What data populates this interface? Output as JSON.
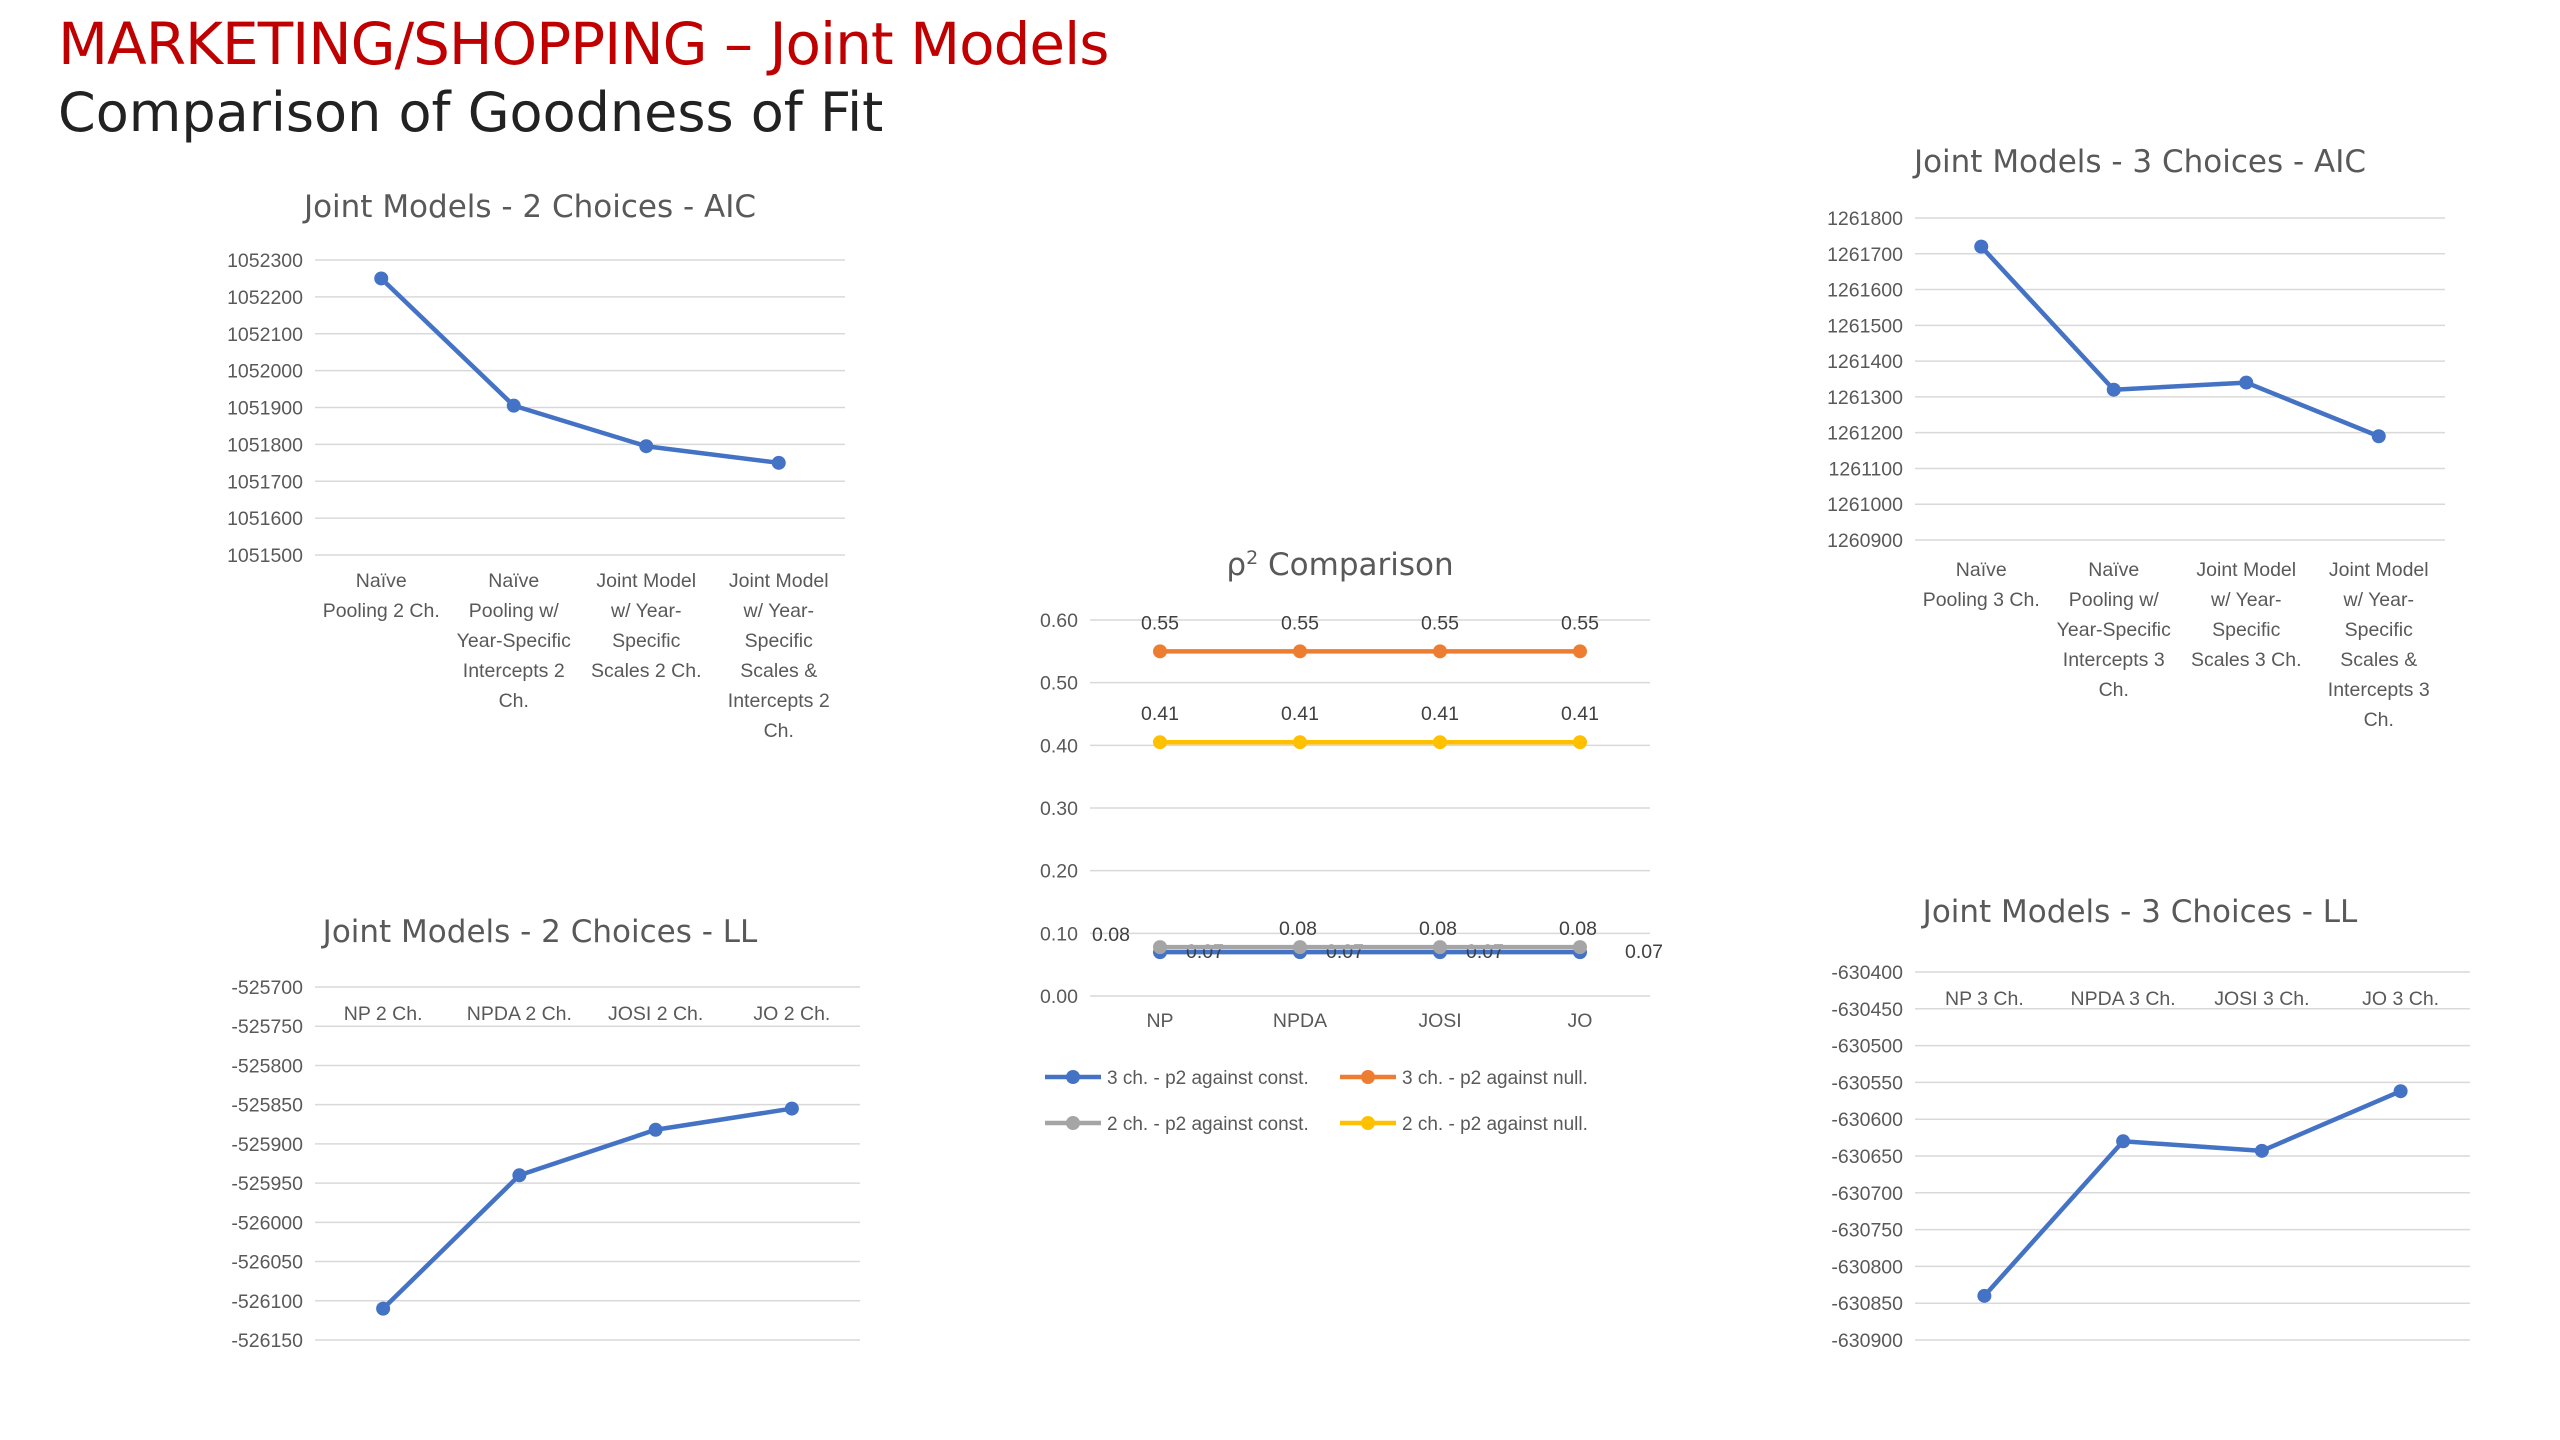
{
  "slide": {
    "title": "MARKETING/SHOPPING – Joint Models",
    "subtitle": "Comparison of Goodness of Fit"
  },
  "colors": {
    "title": "#c00000",
    "series_blue": "#4472c4",
    "series_orange": "#ed7d31",
    "series_gray": "#a5a5a5",
    "series_yellow": "#ffc000",
    "grid": "#d9d9d9",
    "text": "#595959"
  },
  "chart_data": [
    {
      "id": "aic2",
      "type": "line",
      "title": "Joint Models - 2 Choices - AIC",
      "categories": [
        [
          "Naïve",
          "Pooling 2 Ch."
        ],
        [
          "Naïve",
          "Pooling w/",
          "Year-Specific",
          "Intercepts 2",
          "Ch."
        ],
        [
          "Joint Model",
          "w/ Year-",
          "Specific",
          "Scales 2 Ch."
        ],
        [
          "Joint Model",
          "w/ Year-",
          "Specific",
          "Scales &",
          "Intercepts 2",
          "Ch."
        ]
      ],
      "series": [
        {
          "values": [
            1052250,
            1051905,
            1051795,
            1051750
          ],
          "color": "#4472c4"
        }
      ],
      "ylim": [
        1051500,
        1052300
      ],
      "ytick_step": 100,
      "grid": true,
      "xaxis_position": "bottom"
    },
    {
      "id": "aic3",
      "type": "line",
      "title": "Joint Models - 3 Choices - AIC",
      "categories": [
        [
          "Naïve",
          "Pooling 3 Ch."
        ],
        [
          "Naïve",
          "Pooling w/",
          "Year-Specific",
          "Intercepts 3",
          "Ch."
        ],
        [
          "Joint Model",
          "w/ Year-",
          "Specific",
          "Scales 3 Ch."
        ],
        [
          "Joint Model",
          "w/ Year-",
          "Specific",
          "Scales &",
          "Intercepts 3",
          "Ch."
        ]
      ],
      "series": [
        {
          "values": [
            1261720,
            1261320,
            1261340,
            1261190
          ],
          "color": "#4472c4"
        }
      ],
      "ylim": [
        1260900,
        1261800
      ],
      "ytick_step": 100,
      "grid": true,
      "xaxis_position": "bottom"
    },
    {
      "id": "rho",
      "type": "line",
      "title": "ρ",
      "title_superscript": "2",
      "title_suffix": " Comparison",
      "categories": [
        [
          "NP"
        ],
        [
          "NPDA"
        ],
        [
          "JOSI"
        ],
        [
          "JO"
        ]
      ],
      "series": [
        {
          "name": "3 ch. - p2 against const.",
          "values": [
            0.07,
            0.07,
            0.07,
            0.07
          ],
          "color": "#4472c4",
          "labels": [
            "0.07",
            "0.07",
            "0.07",
            "0.07"
          ],
          "label_pos": "below"
        },
        {
          "name": "3 ch. - p2 against null.",
          "values": [
            0.55,
            0.55,
            0.55,
            0.55
          ],
          "color": "#ed7d31",
          "labels": [
            "0.55",
            "0.55",
            "0.55",
            "0.55"
          ],
          "label_pos": "above"
        },
        {
          "name": "2 ch. - p2 against const.",
          "values": [
            0.078,
            0.078,
            0.078,
            0.078
          ],
          "color": "#a5a5a5",
          "labels": [
            "0.08",
            "0.08",
            "0.08",
            "0.08"
          ],
          "label_pos": "above"
        },
        {
          "name": "2 ch. - p2 against null.",
          "values": [
            0.405,
            0.405,
            0.405,
            0.405
          ],
          "color": "#ffc000",
          "labels": [
            "0.41",
            "0.41",
            "0.41",
            "0.41"
          ],
          "label_pos": "above"
        }
      ],
      "ylim": [
        0,
        0.6
      ],
      "ytick_step": 0.1,
      "ytick_decimals": 2,
      "grid": true,
      "xaxis_position": "bottom",
      "legend": "bottom"
    },
    {
      "id": "ll2",
      "type": "line",
      "title": "Joint Models - 2 Choices - LL",
      "categories": [
        [
          "NP 2 Ch."
        ],
        [
          "NPDA 2 Ch."
        ],
        [
          "JOSI 2 Ch."
        ],
        [
          "JO 2 Ch."
        ]
      ],
      "series": [
        {
          "values": [
            -526110,
            -525940,
            -525882,
            -525855
          ],
          "color": "#4472c4"
        }
      ],
      "ylim": [
        -526150,
        -525700
      ],
      "ytick_step": 50,
      "grid": true,
      "xaxis_position": "top"
    },
    {
      "id": "ll3",
      "type": "line",
      "title": "Joint Models - 3 Choices - LL",
      "categories": [
        [
          "NP 3 Ch."
        ],
        [
          "NPDA 3 Ch."
        ],
        [
          "JOSI 3 Ch."
        ],
        [
          "JO 3 Ch."
        ]
      ],
      "series": [
        {
          "values": [
            -630840,
            -630630,
            -630643,
            -630562
          ],
          "color": "#4472c4"
        }
      ],
      "ylim": [
        -630900,
        -630400
      ],
      "ytick_step": 50,
      "grid": true,
      "xaxis_position": "top"
    }
  ]
}
